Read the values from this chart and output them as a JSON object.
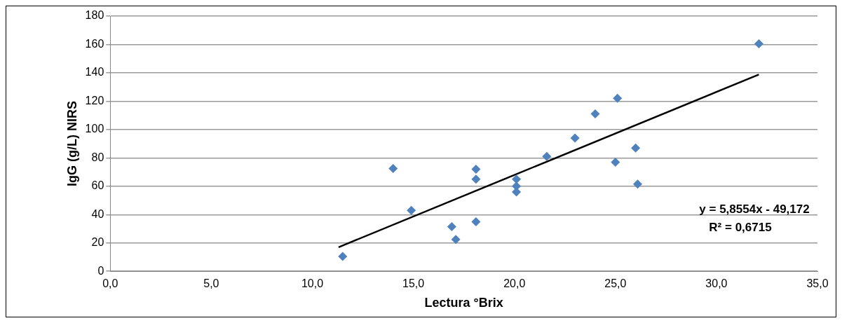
{
  "chart_data": {
    "type": "scatter",
    "xlabel": "Lectura °Brix",
    "ylabel": "IgG (g/L) NIRS",
    "xlim": [
      0,
      35
    ],
    "xticks": [
      {
        "value": 0,
        "label": "0,0"
      },
      {
        "value": 5,
        "label": "5,0"
      },
      {
        "value": 10,
        "label": "10,0"
      },
      {
        "value": 15,
        "label": "15,0"
      },
      {
        "value": 20,
        "label": "20,0"
      },
      {
        "value": 25,
        "label": "25,0"
      },
      {
        "value": 30,
        "label": "30,0"
      },
      {
        "value": 35,
        "label": "35,0"
      }
    ],
    "ylim": [
      0,
      180
    ],
    "yticks": [
      0,
      20,
      40,
      60,
      80,
      100,
      120,
      140,
      160,
      180
    ],
    "grid": "y",
    "legend": false,
    "marker": "diamond",
    "series": [
      {
        "type": "scatter",
        "color": "#4f81bd",
        "x": [
          11.5,
          14.0,
          14.9,
          16.9,
          17.1,
          18.1,
          18.1,
          18.1,
          20.1,
          20.1,
          20.1,
          21.6,
          23.0,
          24.0,
          25.1,
          25.0,
          26.0,
          26.1,
          32.1
        ],
        "values": [
          10.5,
          72.5,
          43,
          31.5,
          22.5,
          72,
          65,
          35,
          65,
          60,
          56,
          81,
          94,
          111,
          122,
          77,
          87,
          61.5,
          160.5
        ]
      },
      {
        "type": "line",
        "color": "#000000",
        "marker": "none",
        "x": [
          11.3,
          32.1
        ],
        "values": [
          17,
          138.8
        ]
      }
    ],
    "annotations": [
      "y = 5,8554x - 49,172",
      "R² = 0,6715"
    ]
  }
}
